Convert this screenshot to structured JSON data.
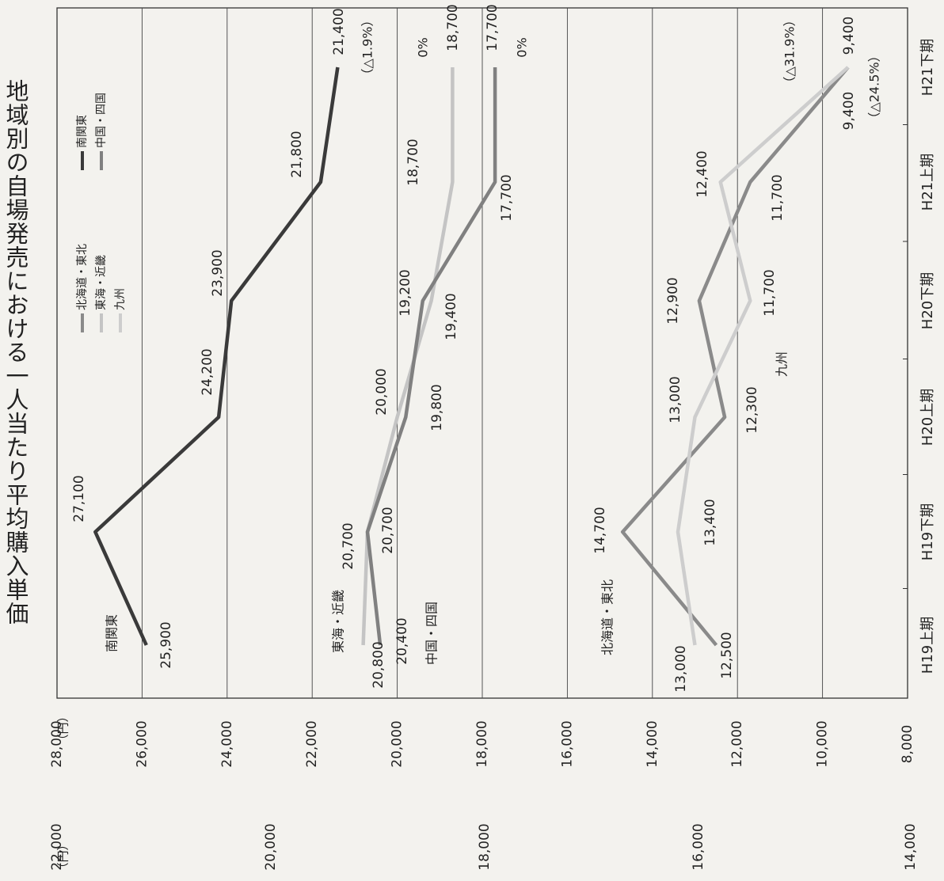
{
  "chart_data": {
    "type": "line",
    "title": "地域別の自場発売における一人当たり平均購入単価",
    "categories": [
      "H19上期",
      "H19下期",
      "H20上期",
      "H20下期",
      "H21上期",
      "H21下期"
    ],
    "unit_label": "（円）",
    "y_axis_main": {
      "ticks": [
        "28,000",
        "26,000",
        "24,000",
        "22,000",
        "20,000",
        "18,000",
        "16,000",
        "14,000",
        "12,000",
        "10,000",
        "8,000"
      ],
      "ylim": [
        8000,
        28000
      ]
    },
    "y_axis_secondary": {
      "ticks": [
        "22,000",
        "20,000",
        "18,000",
        "16,000",
        "14,000"
      ]
    },
    "legend": [
      "北海道・東北",
      "東海・近畿",
      "九州",
      "南関東",
      "中国・四国"
    ],
    "series": [
      {
        "name": "南関東",
        "color": "#3a3a3a",
        "values": [
          25900,
          27100,
          24200,
          23900,
          21800,
          21400
        ],
        "labels": [
          "25,900",
          "27,100",
          "24,200",
          "23,900",
          "21,800",
          "21,400"
        ],
        "change": "（△1.9%）"
      },
      {
        "name": "東海・近畿",
        "color": "#c4c4c4",
        "values": [
          20800,
          20700,
          20000,
          19200,
          18700,
          18700
        ],
        "labels": [
          "20,800",
          "20,700",
          "20,000",
          "19,200",
          "18,700",
          "18,700"
        ],
        "change": "0%"
      },
      {
        "name": "中国・四国",
        "color": "#808080",
        "values": [
          20400,
          20700,
          19800,
          19400,
          17700,
          17700
        ],
        "labels": [
          "20,400",
          "20,700",
          "19,800",
          "19,400",
          "17,700",
          "17,700"
        ],
        "change": "0%"
      },
      {
        "name": "北海道・東北",
        "color": "#8a8a8a",
        "values": [
          12500,
          14700,
          12300,
          12900,
          11700,
          9400
        ],
        "labels": [
          "12,500",
          "14,700",
          "12,300",
          "12,900",
          "11,700",
          "9,400"
        ],
        "change": "（△24.5%）"
      },
      {
        "name": "九州",
        "color": "#cdcdcd",
        "values": [
          13000,
          13400,
          13000,
          11700,
          12400,
          9400
        ],
        "labels": [
          "13,000",
          "13,400",
          "13,000",
          "11,700",
          "12,400",
          "9,400"
        ],
        "change": "（△31.9%）"
      }
    ]
  }
}
